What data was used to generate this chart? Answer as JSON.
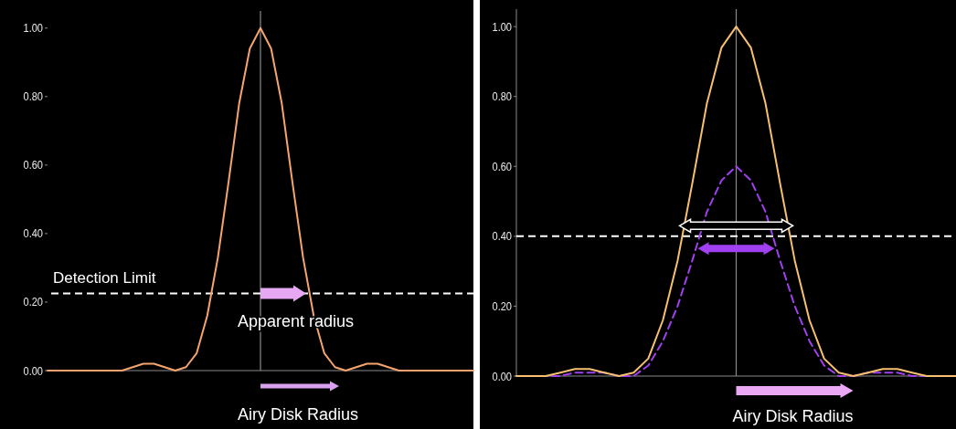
{
  "chart_data": [
    {
      "type": "line",
      "categories": [
        null,
        null,
        null,
        null,
        null,
        null,
        null,
        null,
        null,
        null,
        null,
        null,
        null,
        null,
        null,
        null,
        null,
        null,
        null,
        null,
        null,
        null,
        null,
        null,
        null,
        null,
        null,
        null,
        null,
        null,
        null,
        null,
        null,
        null,
        null,
        null,
        null,
        null,
        null,
        null,
        null
      ],
      "series": [
        {
          "color": "#f5a46e",
          "values": [
            0.0,
            0.0,
            0.0,
            0.0,
            0.0,
            0.0,
            0.0,
            0.0,
            0.01,
            0.02,
            0.02,
            0.01,
            0.0,
            0.01,
            0.05,
            0.16,
            0.33,
            0.55,
            0.78,
            0.94,
            1.0,
            0.94,
            0.78,
            0.55,
            0.33,
            0.16,
            0.05,
            0.01,
            0.0,
            0.01,
            0.02,
            0.02,
            0.01,
            0.0,
            0.0,
            0.0,
            0.0,
            0.0,
            0.0,
            0.0,
            0.0
          ]
        }
      ],
      "ylim": [
        0,
        1.05
      ],
      "yticks": [
        {
          "value": 0,
          "label": "0.00"
        },
        {
          "value": 0.2,
          "label": "0.20"
        },
        {
          "value": 0.4,
          "label": "0.40"
        },
        {
          "value": 0.6,
          "label": "0.60"
        },
        {
          "value": 0.8,
          "label": "0.80"
        },
        {
          "value": 1,
          "label": "1.00"
        }
      ],
      "tick_labels": "y",
      "grid": false,
      "ref_lines": [
        {
          "axis": "y",
          "value": 0.225,
          "label": "Detection Limit",
          "color": "#ffffff",
          "line_style": "dashed"
        }
      ],
      "annotations": [
        "Apparent radius",
        "Airy Disk Radius"
      ]
    },
    {
      "type": "line",
      "categories": [
        null,
        null,
        null,
        null,
        null,
        null,
        null,
        null,
        null,
        null,
        null,
        null,
        null,
        null,
        null,
        null,
        null,
        null,
        null,
        null,
        null,
        null,
        null,
        null,
        null,
        null,
        null,
        null,
        null,
        null,
        null
      ],
      "series": [
        {
          "color": "#a040f0",
          "line_style": "dashed",
          "values": [
            0.0,
            0.0,
            0.0,
            0.0,
            0.01,
            0.01,
            0.01,
            0.0,
            0.0,
            0.03,
            0.1,
            0.2,
            0.33,
            0.47,
            0.56,
            0.6,
            0.56,
            0.47,
            0.33,
            0.2,
            0.1,
            0.03,
            0.0,
            0.0,
            0.01,
            0.01,
            0.01,
            0.0,
            0.0,
            0.0,
            0.0
          ]
        },
        {
          "color": "#f7c070",
          "line_style": "solid",
          "values": [
            0.0,
            0.0,
            0.0,
            0.01,
            0.02,
            0.02,
            0.01,
            0.0,
            0.01,
            0.05,
            0.16,
            0.33,
            0.55,
            0.78,
            0.94,
            1.0,
            0.94,
            0.78,
            0.55,
            0.33,
            0.16,
            0.05,
            0.01,
            0.0,
            0.01,
            0.02,
            0.02,
            0.01,
            0.0,
            0.0,
            0.0
          ]
        }
      ],
      "ylim": [
        0,
        1.05
      ],
      "yticks": [
        {
          "value": 0,
          "label": "0.00"
        },
        {
          "value": 0.2,
          "label": "0.20"
        },
        {
          "value": 0.4,
          "label": "0.40"
        },
        {
          "value": 0.6,
          "label": "0.60"
        },
        {
          "value": 0.8,
          "label": "0.80"
        },
        {
          "value": 1,
          "label": "1.00"
        }
      ],
      "tick_labels": "y",
      "grid": false,
      "ref_lines": [
        {
          "axis": "y",
          "value": 0.4,
          "label": null,
          "color": "#ffffff",
          "line_style": "dashed"
        }
      ],
      "annotations": [
        "Airy Disk Radius"
      ]
    }
  ]
}
